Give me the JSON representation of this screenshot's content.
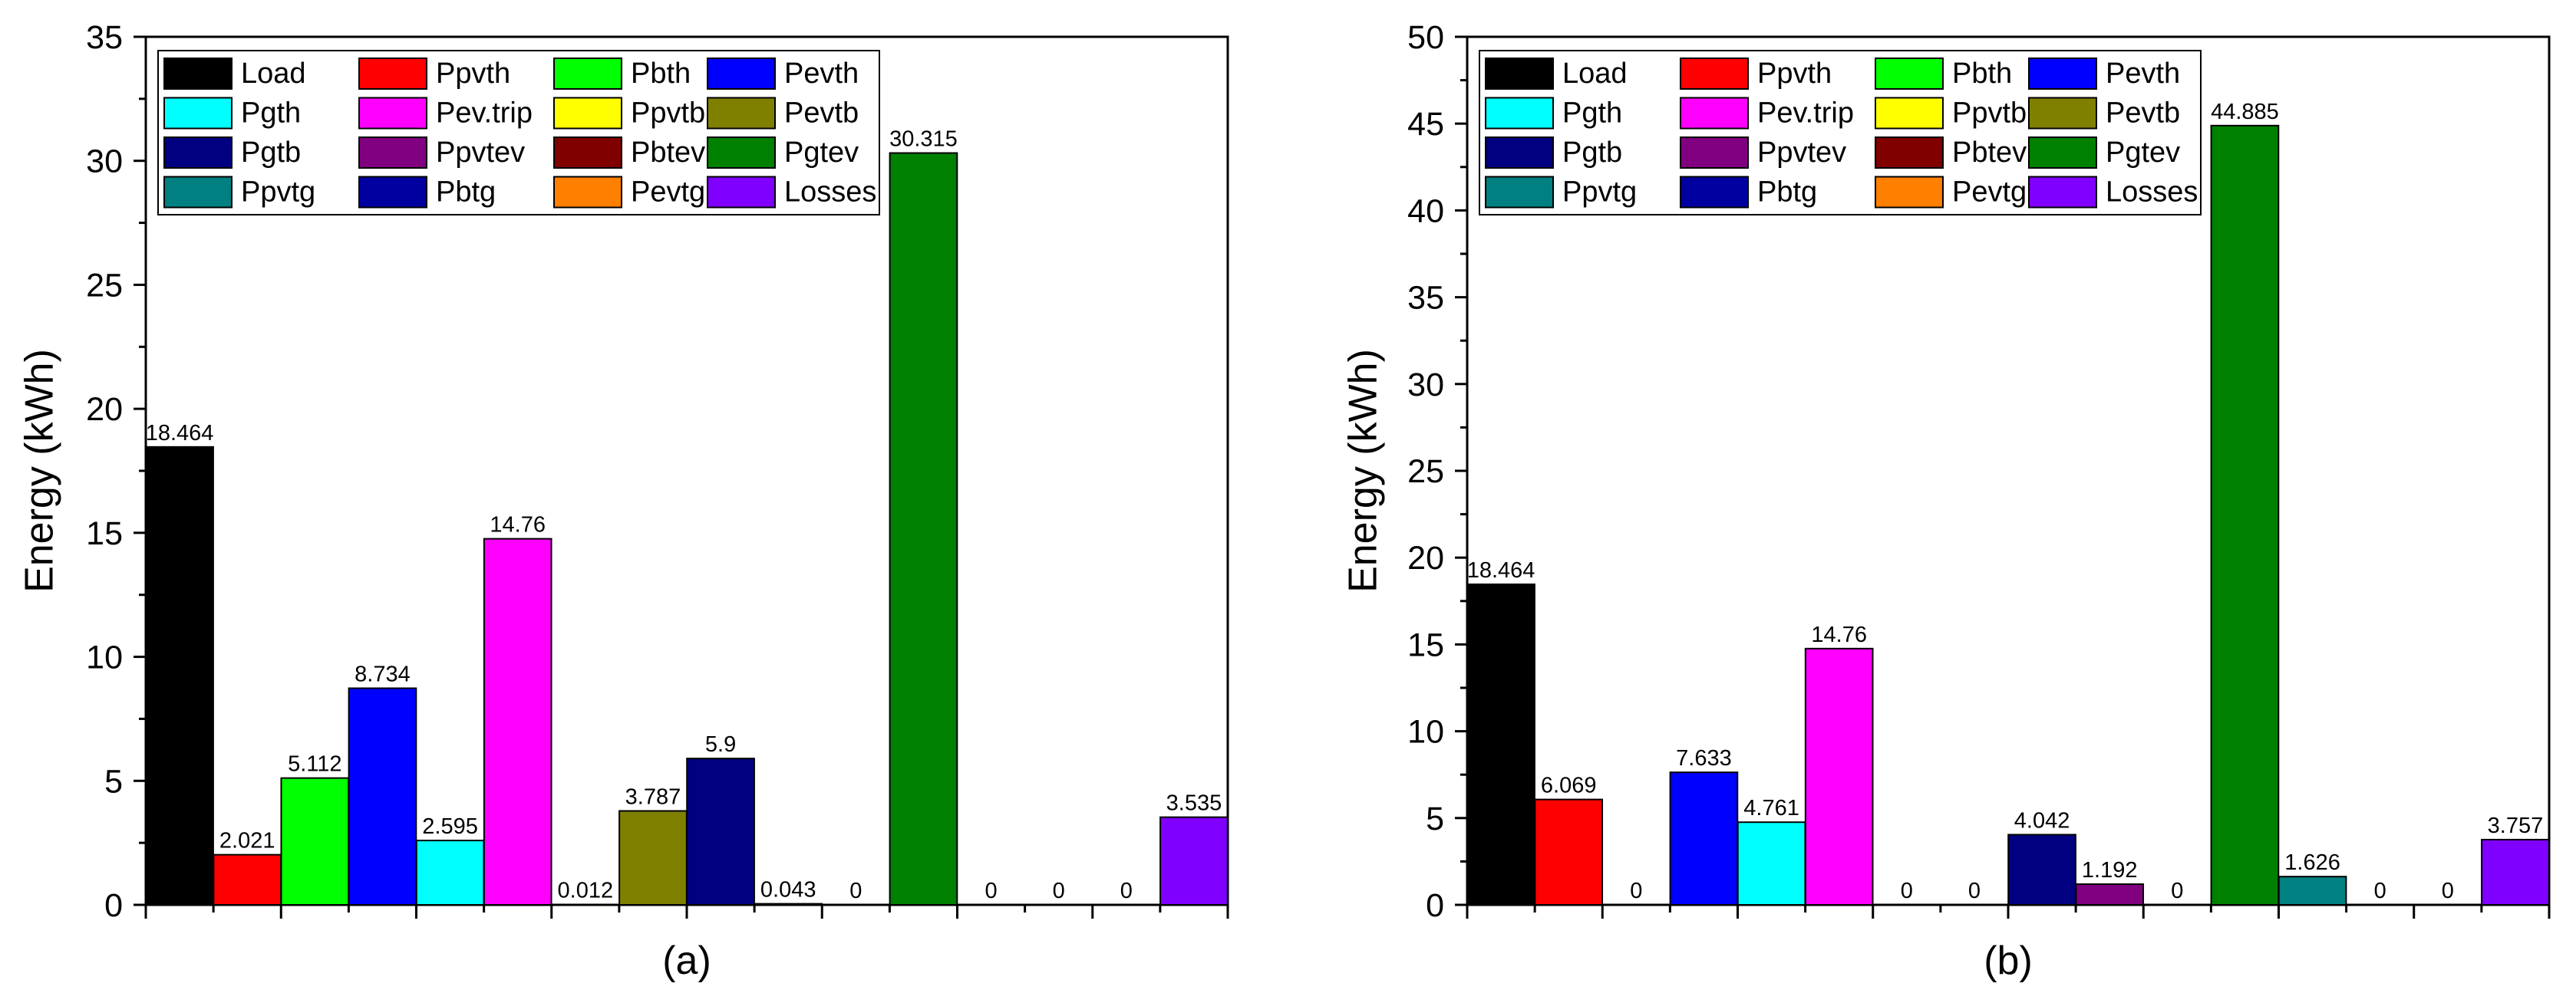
{
  "chart_data": [
    {
      "type": "bar",
      "panel_label": "(a)",
      "ylabel": "Energy (kWh)",
      "ylim": [
        0,
        35
      ],
      "yticks": [
        "0",
        "5",
        "10",
        "15",
        "20",
        "25",
        "30",
        "35"
      ],
      "grid": false,
      "legend_position": "top-left",
      "categories": [
        "Load",
        "Ppvth",
        "Pbth",
        "Pevth",
        "Pgth",
        "Pev.trip",
        "Ppvtb",
        "Pevtb",
        "Pgtb",
        "Ppvtev",
        "Pbtev",
        "Pgtev",
        "Ppvtg",
        "Pbtg",
        "Pevtg",
        "Losses"
      ],
      "values": [
        18.464,
        2.021,
        5.112,
        8.734,
        2.595,
        14.76,
        0.012,
        3.787,
        5.9,
        0.043,
        0,
        30.315,
        0,
        0,
        0,
        3.535
      ],
      "value_labels": [
        "18.464",
        "2.021",
        "5.112",
        "8.734",
        "2.595",
        "14.76",
        "0.012",
        "3.787",
        "5.9",
        "0.043",
        "0",
        "30.315",
        "0",
        "0",
        "0",
        "3.535"
      ]
    },
    {
      "type": "bar",
      "panel_label": "(b)",
      "ylabel": "Energy (kWh)",
      "ylim": [
        0,
        50
      ],
      "yticks": [
        "0",
        "5",
        "10",
        "15",
        "20",
        "25",
        "30",
        "35",
        "40",
        "45",
        "50"
      ],
      "grid": false,
      "legend_position": "top-left",
      "categories": [
        "Load",
        "Ppvth",
        "Pbth",
        "Pevth",
        "Pgth",
        "Pev.trip",
        "Ppvtb",
        "Pevtb",
        "Pgtb",
        "Ppvtev",
        "Pbtev",
        "Pgtev",
        "Ppvtg",
        "Pbtg",
        "Pevtg",
        "Losses"
      ],
      "values": [
        18.464,
        6.069,
        0,
        7.633,
        4.761,
        14.76,
        0,
        0,
        4.042,
        1.192,
        0,
        44.885,
        1.626,
        0,
        0,
        3.757
      ],
      "value_labels": [
        "18.464",
        "6.069",
        "0",
        "7.633",
        "4.761",
        "14.76",
        "0",
        "0",
        "4.042",
        "1.192",
        "0",
        "44.885",
        "1.626",
        "0",
        "0",
        "3.757"
      ]
    }
  ],
  "series_colors": {
    "Load": "#000000",
    "Ppvth": "#ff0000",
    "Pbth": "#00ff00",
    "Pevth": "#0000ff",
    "Pgth": "#00ffff",
    "Pev.trip": "#ff00ff",
    "Ppvtb": "#ffff00",
    "Pevtb": "#808000",
    "Pgtb": "#000080",
    "Ppvtev": "#800080",
    "Pbtev": "#800000",
    "Pgtev": "#008000",
    "Ppvtg": "#008080",
    "Pbtg": "#0000a0",
    "Pevtg": "#ff8000",
    "Losses": "#8000ff"
  }
}
